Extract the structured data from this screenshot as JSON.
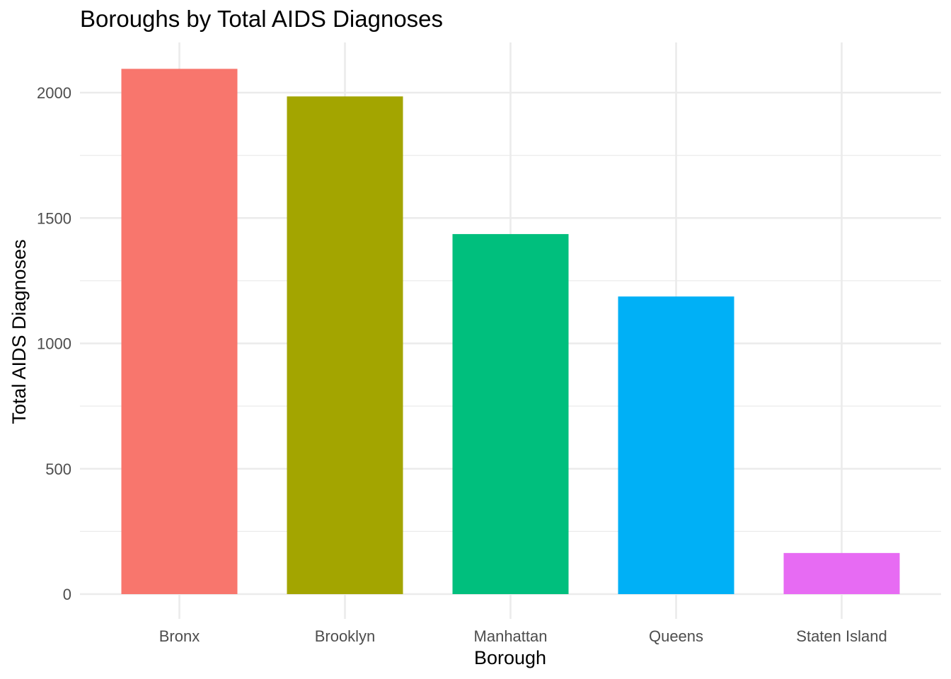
{
  "chart_data": {
    "type": "bar",
    "title": "Boroughs by Total AIDS Diagnoses",
    "xlabel": "Borough",
    "ylabel": "Total AIDS Diagnoses",
    "categories": [
      "Bronx",
      "Brooklyn",
      "Manhattan",
      "Queens",
      "Staten Island"
    ],
    "values": [
      2095,
      1985,
      1436,
      1187,
      164
    ],
    "colors": [
      "#F8766D",
      "#A3A500",
      "#00BF7D",
      "#00B0F6",
      "#E76BF3"
    ],
    "ylim": [
      0,
      2200
    ],
    "yticks": [
      0,
      500,
      1000,
      1500,
      2000
    ],
    "ytick_labels": [
      "0",
      "500",
      "1000",
      "1500",
      "2000"
    ],
    "grid": true,
    "legend": "none",
    "theme": "minimal"
  }
}
